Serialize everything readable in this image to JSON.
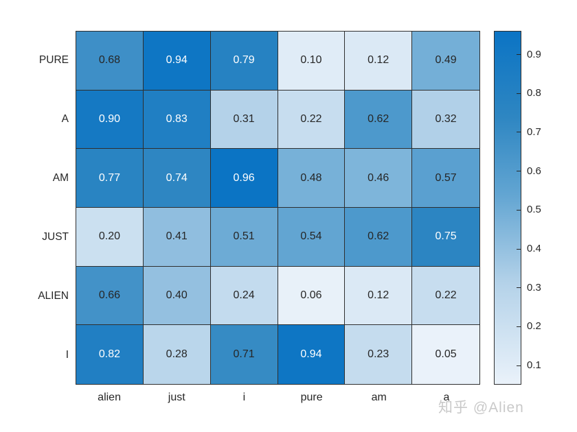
{
  "watermark": {
    "text": "知乎 @Alien"
  },
  "chart_data": {
    "type": "heatmap",
    "title": "",
    "xlabel": "",
    "ylabel": "",
    "rows": [
      "PURE",
      "A",
      "AM",
      "JUST",
      "ALIEN",
      "I"
    ],
    "columns": [
      "alien",
      "just",
      "i",
      "pure",
      "am",
      "a"
    ],
    "values": [
      [
        0.68,
        0.94,
        0.79,
        0.1,
        0.12,
        0.49
      ],
      [
        0.9,
        0.83,
        0.31,
        0.22,
        0.62,
        0.32
      ],
      [
        0.77,
        0.74,
        0.96,
        0.48,
        0.46,
        0.57
      ],
      [
        0.2,
        0.41,
        0.51,
        0.54,
        0.62,
        0.75
      ],
      [
        0.66,
        0.4,
        0.24,
        0.06,
        0.12,
        0.22
      ],
      [
        0.82,
        0.28,
        0.71,
        0.94,
        0.23,
        0.05
      ]
    ],
    "value_decimals": 2,
    "value_range": [
      0.05,
      0.96
    ],
    "colorbar_ticks": [
      0.1,
      0.2,
      0.3,
      0.4,
      0.5,
      0.6,
      0.7,
      0.8,
      0.9
    ],
    "colorbar_tick_decimals": 1,
    "legend_position": "right",
    "grid": true,
    "light_text_threshold": 0.73,
    "colormap_stops": [
      {
        "t": 0.0,
        "color": "#eaf2fa"
      },
      {
        "t": 0.286,
        "color": "#b4d2e9"
      },
      {
        "t": 0.538,
        "color": "#62a5d2"
      },
      {
        "t": 0.758,
        "color": "#2e86c2"
      },
      {
        "t": 1.0,
        "color": "#0b74c4"
      }
    ],
    "colors": {
      "background": "#ffffff",
      "grid_line": "#2e2e2e",
      "label_text": "#262626",
      "cell_text_dark": "#262626",
      "cell_text_light": "#ffffff",
      "watermark": "#c9c9c9"
    }
  }
}
